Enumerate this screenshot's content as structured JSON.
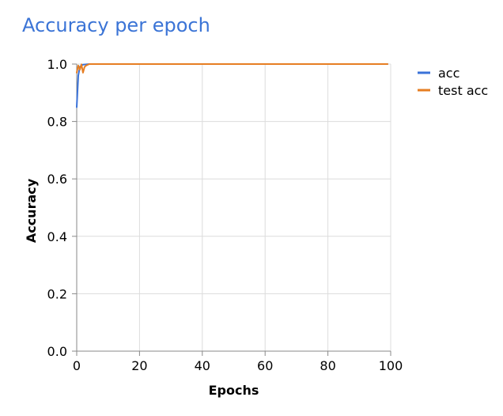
{
  "chart_data": {
    "type": "line",
    "title": "Accuracy per epoch",
    "xlabel": "Epochs",
    "ylabel": "Accuracy",
    "xlim": [
      0,
      100
    ],
    "ylim": [
      0,
      1
    ],
    "xticks": [
      0,
      20,
      40,
      60,
      80,
      100
    ],
    "yticks": [
      0.0,
      0.2,
      0.4,
      0.6,
      0.8,
      1.0
    ],
    "ytick_labels": [
      "0.0",
      "0.2",
      "0.4",
      "0.6",
      "0.8",
      "1.0"
    ],
    "grid": true,
    "legend_position": "right",
    "series": [
      {
        "name": "acc",
        "color": "#3a72d8",
        "x": [
          0,
          0.5,
          1,
          1.5,
          2,
          3,
          4,
          5,
          10,
          20,
          30,
          40,
          50,
          60,
          70,
          80,
          90,
          99
        ],
        "y": [
          0.85,
          0.96,
          0.99,
          0.995,
          0.998,
          0.999,
          1.0,
          1.0,
          1.0,
          1.0,
          1.0,
          1.0,
          1.0,
          1.0,
          1.0,
          1.0,
          1.0,
          1.0
        ]
      },
      {
        "name": "test acc",
        "color": "#e67e22",
        "x": [
          0,
          0.5,
          1,
          1.5,
          2,
          2.5,
          3,
          4,
          5,
          10,
          20,
          30,
          40,
          50,
          60,
          70,
          80,
          90,
          99
        ],
        "y": [
          0.97,
          0.995,
          0.98,
          0.999,
          0.97,
          0.99,
          0.995,
          1.0,
          1.0,
          1.0,
          1.0,
          1.0,
          1.0,
          1.0,
          1.0,
          1.0,
          1.0,
          1.0,
          1.0
        ]
      }
    ]
  }
}
